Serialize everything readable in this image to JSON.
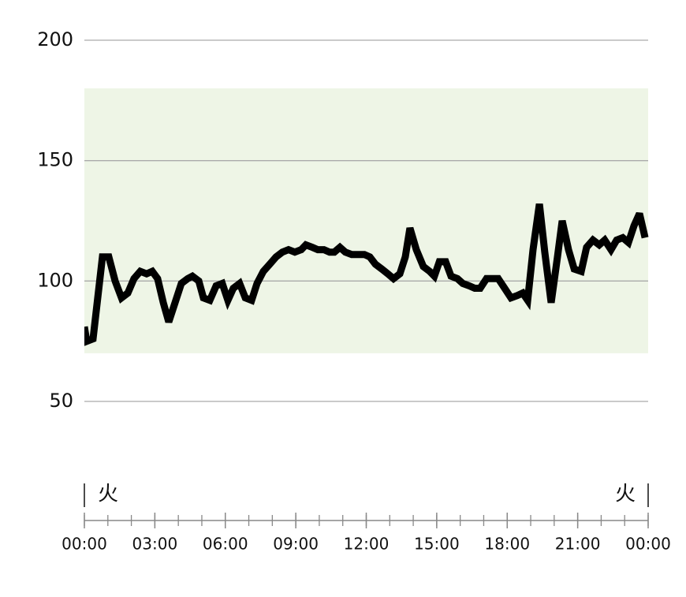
{
  "chart_data": {
    "type": "line",
    "ylim": [
      50,
      200
    ],
    "yticks": [
      50,
      100,
      150,
      200
    ],
    "grid": true,
    "xlim": [
      0,
      24
    ],
    "xticks": [
      {
        "value": 0,
        "label": "00:00"
      },
      {
        "value": 3,
        "label": "03:00"
      },
      {
        "value": 6,
        "label": "06:00"
      },
      {
        "value": 9,
        "label": "09:00"
      },
      {
        "value": 12,
        "label": "12:00"
      },
      {
        "value": 15,
        "label": "15:00"
      },
      {
        "value": 18,
        "label": "18:00"
      },
      {
        "value": 21,
        "label": "21:00"
      },
      {
        "value": 24,
        "label": "00:00"
      }
    ],
    "xticks_minor": [
      0,
      1,
      2,
      3,
      4,
      5,
      6,
      7,
      8,
      9,
      10,
      11,
      12,
      13,
      14,
      15,
      16,
      17,
      18,
      19,
      20,
      21,
      22,
      23,
      24
    ],
    "day_labels": [
      "火",
      "火"
    ],
    "target_range": [
      70,
      180
    ],
    "target_color": "#eef5e6",
    "x": [
      0,
      0.1,
      0.37,
      0.77,
      1.04,
      1.31,
      1.58,
      1.85,
      2.11,
      2.38,
      2.65,
      2.89,
      3.12,
      3.36,
      3.59,
      3.86,
      4.13,
      4.4,
      4.6,
      4.87,
      5.07,
      5.34,
      5.61,
      5.87,
      6.11,
      6.34,
      6.61,
      6.85,
      7.12,
      7.35,
      7.62,
      7.89,
      8.16,
      8.43,
      8.69,
      8.96,
      9.23,
      9.43,
      9.7,
      9.94,
      10.2,
      10.44,
      10.64,
      10.88,
      11.11,
      11.38,
      11.68,
      11.92,
      12.15,
      12.39,
      12.66,
      12.92,
      13.16,
      13.43,
      13.66,
      13.86,
      14.13,
      14.43,
      14.7,
      14.9,
      15.11,
      15.38,
      15.61,
      15.88,
      16.11,
      16.38,
      16.62,
      16.85,
      17.12,
      17.35,
      17.62,
      17.89,
      18.16,
      18.43,
      18.66,
      18.87,
      19.1,
      19.37,
      19.6,
      19.87,
      20.14,
      20.34,
      20.61,
      20.85,
      21.15,
      21.38,
      21.65,
      21.92,
      22.15,
      22.42,
      22.66,
      22.92,
      23.16,
      23.4,
      23.63,
      23.87
    ],
    "series": [
      {
        "color": "#000000",
        "values": [
          81,
          75,
          76,
          110,
          110,
          100,
          93,
          95,
          101,
          104,
          103,
          104,
          101,
          91,
          83,
          91,
          99,
          101,
          102,
          100,
          93,
          92,
          98,
          99,
          92,
          97,
          99,
          93,
          92,
          99,
          104,
          107,
          110,
          112,
          113,
          112,
          113,
          115,
          114,
          113,
          113,
          112,
          112,
          114,
          112,
          111,
          111,
          111,
          110,
          107,
          105,
          103,
          101,
          103,
          110,
          122,
          113,
          106,
          104,
          102,
          108,
          108,
          102,
          101,
          99,
          98,
          97,
          97,
          101,
          101,
          101,
          97,
          93,
          94,
          95,
          92,
          113,
          132,
          112,
          91,
          110,
          125,
          113,
          105,
          104,
          114,
          117,
          115,
          117,
          113,
          117,
          118,
          116,
          123,
          128,
          118
        ]
      }
    ]
  }
}
